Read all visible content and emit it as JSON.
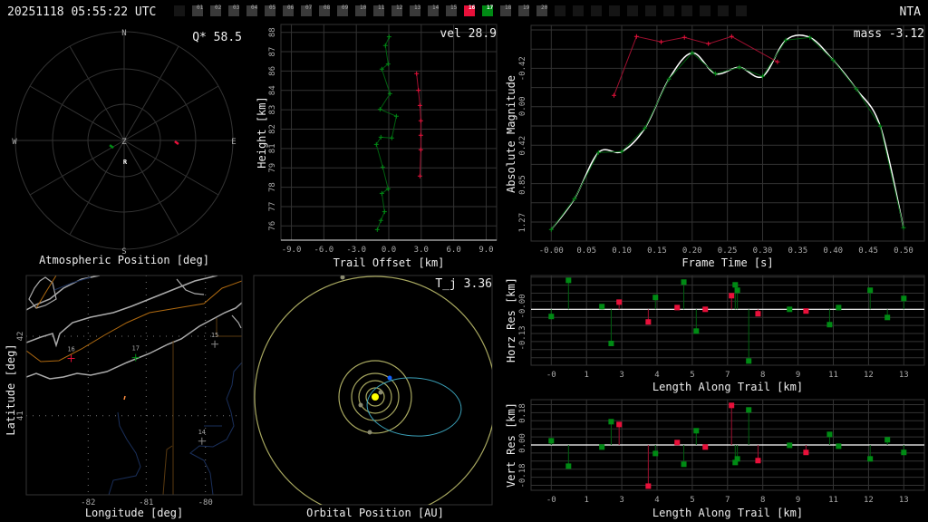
{
  "header": {
    "timestamp": "20251118 05:55:22 UTC",
    "shower_code": "NTA"
  },
  "stations": {
    "labels": [
      "01",
      "02",
      "03",
      "04",
      "05",
      "06",
      "07",
      "08",
      "09",
      "10",
      "11",
      "12",
      "13",
      "14",
      "15",
      "16",
      "17",
      "18",
      "19",
      "20"
    ],
    "active": {
      "16": "#e8103a",
      "17": "#008a14"
    },
    "inactive_color": "#3a3a3a",
    "empty_slots_before": 1,
    "empty_slots_after": 11
  },
  "colors": {
    "station_16": "#e8103a",
    "station_17": "#008a14",
    "fit": "#ffffff",
    "grid": "#333333",
    "orbit": "#a8a860",
    "meteoroid_orbit": "#3aa0b8",
    "sun": "#ffff00",
    "earth": "#1060ff"
  },
  "panels": {
    "atmospheric": {
      "title": "Atmospheric Position [deg]",
      "stat": "Q* 58.5",
      "labels": {
        "n": "N",
        "s": "S",
        "e": "E",
        "w": "W",
        "z": "Z",
        "r": "R"
      }
    },
    "trail": {
      "stat": "vel 28.9"
    },
    "magnitude": {
      "stat": "mass -3.12"
    },
    "map": {
      "xlabel": "Longitude [deg]",
      "ylabel": "Latitude [deg]"
    },
    "orbit": {
      "title": "Orbital Position [AU]",
      "stat": "T_j 3.36"
    }
  },
  "chart_data": [
    {
      "id": "atmospheric",
      "type": "scatter",
      "title": "Atmospheric Position [deg]",
      "projection": "polar azimuth/altitude",
      "rings_zenith_deg": [
        30,
        60,
        90
      ],
      "series": [
        {
          "station": "16",
          "color": "#e8103a",
          "points": [
            {
              "az": 93,
              "alt": 46.5
            }
          ]
        },
        {
          "station": "17",
          "color": "#008a14",
          "points": [
            {
              "az": 243,
              "alt": 78.3
            }
          ]
        }
      ]
    },
    {
      "id": "trail",
      "type": "line",
      "xlabel": "Trail Offset [km]",
      "ylabel": "Height [km]",
      "xlim": [
        -10,
        10
      ],
      "ylim": [
        75.5,
        88.3
      ],
      "xticks": [
        "-9.0",
        "-6.0",
        "-3.0",
        "0.0",
        "3.0",
        "6.0",
        "9.0"
      ],
      "yticks": [
        "88",
        "87",
        "86",
        "84",
        "83",
        "82",
        "81",
        "79",
        "78",
        "77",
        "76"
      ],
      "grid": true,
      "series": [
        {
          "station": "17",
          "color": "#008a14",
          "x": [
            0.03,
            -0.31,
            -0.06,
            -0.64,
            0.11,
            -0.81,
            0.7,
            0.28,
            -0.73,
            -1.15,
            -0.56,
            -0.06,
            -0.64,
            -0.39,
            -0.73,
            -1.06
          ],
          "y": [
            87.72,
            87.18,
            86.04,
            85.72,
            84.2,
            83.23,
            82.8,
            81.45,
            81.5,
            81.05,
            79.65,
            78.3,
            78.02,
            76.88,
            76.34,
            75.77
          ]
        },
        {
          "station": "16",
          "color": "#e8103a",
          "x": [
            2.57,
            2.74,
            2.88,
            2.96,
            2.96,
            2.96,
            2.88
          ],
          "y": [
            85.44,
            84.41,
            83.47,
            82.52,
            81.62,
            80.72,
            79.09
          ]
        }
      ]
    },
    {
      "id": "magnitude",
      "type": "line",
      "xlabel": "Frame Time [s]",
      "ylabel": "Absolute Magnitude",
      "xlim": [
        -0.028,
        0.53
      ],
      "ylim": [
        -0.89,
        1.49
      ],
      "y_inverted": true,
      "xticks": [
        "-0.00",
        "0.05",
        "0.10",
        "0.15",
        "0.20",
        "0.25",
        "0.30",
        "0.35",
        "0.40",
        "0.45",
        "0.50"
      ],
      "yticks": [
        "-0.42",
        "0.00",
        "0.42",
        "0.85",
        "1.27"
      ],
      "grid": true,
      "series": [
        {
          "station": "17",
          "color": "#008a14",
          "x": [
            0,
            0.033,
            0.067,
            0.1,
            0.133,
            0.167,
            0.2,
            0.233,
            0.267,
            0.3,
            0.333,
            0.367,
            0.4,
            0.433,
            0.467,
            0.5
          ],
          "y": [
            1.36,
            1.02,
            0.51,
            0.5,
            0.24,
            -0.3,
            -0.59,
            -0.36,
            -0.43,
            -0.33,
            -0.73,
            -0.76,
            -0.51,
            -0.19,
            0.22,
            1.34
          ]
        },
        {
          "station": "16",
          "color": "#e8103a",
          "x": [
            0.089,
            0.121,
            0.156,
            0.189,
            0.223,
            0.256,
            0.321
          ],
          "y": [
            -0.12,
            -0.77,
            -0.71,
            -0.76,
            -0.69,
            -0.77,
            -0.49
          ]
        }
      ],
      "fit_curve": "smooth fit through station 17 light curve (white)"
    },
    {
      "id": "horz_res",
      "type": "scatter",
      "xlabel": "Length Along Trail [km]",
      "ylabel": "Horz Res [km]",
      "xlim": [
        -0.75,
        14.1
      ],
      "ylim": [
        -0.24,
        0.135
      ],
      "xticks": [
        "-0",
        "1",
        "3",
        "4",
        "5",
        "7",
        "8",
        "9",
        "11",
        "12",
        "13"
      ],
      "yticks": [
        "-0.00",
        "-0.13"
      ],
      "grid": true,
      "points": [
        {
          "x": 0.0,
          "y": -0.029,
          "s": "17"
        },
        {
          "x": 0.65,
          "y": 0.117,
          "s": "17"
        },
        {
          "x": 1.91,
          "y": 0.011,
          "s": "17"
        },
        {
          "x": 2.26,
          "y": -0.138,
          "s": "17"
        },
        {
          "x": 2.56,
          "y": 0.029,
          "s": "16"
        },
        {
          "x": 3.66,
          "y": -0.051,
          "s": "16"
        },
        {
          "x": 3.93,
          "y": 0.048,
          "s": "17"
        },
        {
          "x": 4.75,
          "y": 0.007,
          "s": "16"
        },
        {
          "x": 5.0,
          "y": 0.11,
          "s": "17"
        },
        {
          "x": 5.47,
          "y": -0.088,
          "s": "17"
        },
        {
          "x": 5.81,
          "y": 0.0,
          "s": "16"
        },
        {
          "x": 6.8,
          "y": 0.055,
          "s": "16"
        },
        {
          "x": 6.94,
          "y": 0.099,
          "s": "17"
        },
        {
          "x": 7.02,
          "y": 0.077,
          "s": "17"
        },
        {
          "x": 7.45,
          "y": -0.209,
          "s": "17"
        },
        {
          "x": 7.8,
          "y": -0.018,
          "s": "16"
        },
        {
          "x": 8.99,
          "y": 0.0,
          "s": "17"
        },
        {
          "x": 9.61,
          "y": -0.007,
          "s": "16"
        },
        {
          "x": 10.5,
          "y": -0.062,
          "s": "17"
        },
        {
          "x": 10.84,
          "y": 0.007,
          "s": "17"
        },
        {
          "x": 12.03,
          "y": 0.077,
          "s": "17"
        },
        {
          "x": 12.68,
          "y": -0.033,
          "s": "17"
        },
        {
          "x": 13.3,
          "y": 0.044,
          "s": "17"
        }
      ]
    },
    {
      "id": "vert_res",
      "type": "scatter",
      "xlabel": "Length Along Trail [km]",
      "ylabel": "Vert Res [km]",
      "xlim": [
        -0.75,
        14.1
      ],
      "ylim": [
        -0.26,
        0.26
      ],
      "xticks": [
        "-0",
        "1",
        "3",
        "4",
        "5",
        "7",
        "8",
        "9",
        "11",
        "12",
        "13"
      ],
      "yticks": [
        "0.18",
        "0.00",
        "-0.18"
      ],
      "grid": true,
      "points": [
        {
          "x": 0.0,
          "y": 0.024,
          "s": "17"
        },
        {
          "x": 0.65,
          "y": -0.122,
          "s": "17"
        },
        {
          "x": 1.91,
          "y": -0.012,
          "s": "17"
        },
        {
          "x": 2.26,
          "y": 0.134,
          "s": "17"
        },
        {
          "x": 2.56,
          "y": 0.118,
          "s": "16"
        },
        {
          "x": 3.66,
          "y": -0.237,
          "s": "16"
        },
        {
          "x": 3.93,
          "y": -0.049,
          "s": "17"
        },
        {
          "x": 4.75,
          "y": 0.014,
          "s": "16"
        },
        {
          "x": 5.0,
          "y": -0.111,
          "s": "17"
        },
        {
          "x": 5.47,
          "y": 0.082,
          "s": "17"
        },
        {
          "x": 5.81,
          "y": -0.012,
          "s": "16"
        },
        {
          "x": 6.8,
          "y": 0.228,
          "s": "16"
        },
        {
          "x": 6.94,
          "y": -0.101,
          "s": "17"
        },
        {
          "x": 7.02,
          "y": -0.08,
          "s": "17"
        },
        {
          "x": 7.45,
          "y": 0.202,
          "s": "17"
        },
        {
          "x": 7.8,
          "y": -0.09,
          "s": "16"
        },
        {
          "x": 8.99,
          "y": -0.002,
          "s": "17"
        },
        {
          "x": 9.61,
          "y": -0.043,
          "s": "16"
        },
        {
          "x": 10.5,
          "y": 0.061,
          "s": "17"
        },
        {
          "x": 10.84,
          "y": -0.007,
          "s": "17"
        },
        {
          "x": 12.03,
          "y": -0.08,
          "s": "17"
        },
        {
          "x": 12.68,
          "y": 0.03,
          "s": "17"
        },
        {
          "x": 13.3,
          "y": -0.043,
          "s": "17"
        }
      ]
    },
    {
      "id": "map",
      "type": "scatter",
      "xlabel": "Longitude [deg]",
      "ylabel": "Latitude [deg]",
      "xticks": [
        "-82",
        "-81",
        "-80"
      ],
      "yticks": [
        "42",
        "41"
      ],
      "stations": [
        {
          "label": "16",
          "lon": -82.29,
          "lat": 41.72,
          "color": "#e8103a"
        },
        {
          "label": "17",
          "lon": -81.19,
          "lat": 41.73,
          "color": "#008a14"
        },
        {
          "label": "15",
          "lon": -79.84,
          "lat": 41.9,
          "color": "#888888"
        },
        {
          "label": "14",
          "lon": -80.06,
          "lat": 40.68,
          "color": "#888888"
        }
      ]
    }
  ]
}
